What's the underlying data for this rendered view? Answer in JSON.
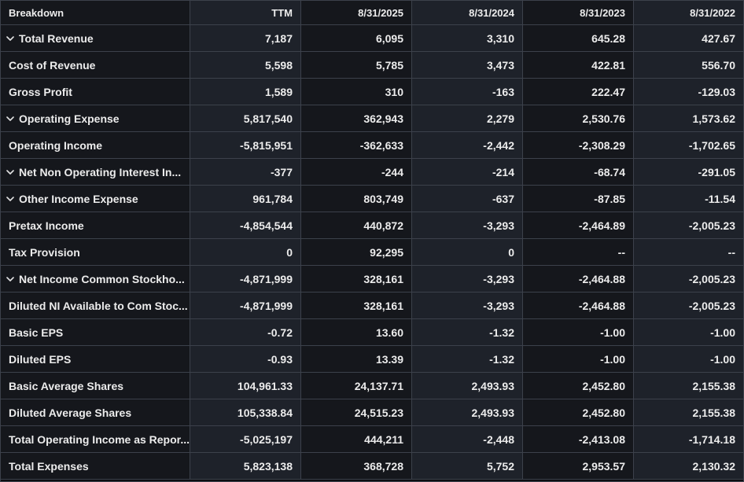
{
  "colors": {
    "column_dark": "#15171c",
    "column_light": "#1e222a",
    "border": "#3c414b",
    "text": "#ececec",
    "page_bg": "#0c0d10"
  },
  "table": {
    "columns": [
      {
        "id": "breakdown",
        "label": "Breakdown"
      },
      {
        "id": "ttm",
        "label": "TTM"
      },
      {
        "id": "date-8-31-2025",
        "label": "8/31/2025"
      },
      {
        "id": "date-8-31-2024",
        "label": "8/31/2024"
      },
      {
        "id": "date-8-31-2023",
        "label": "8/31/2023"
      },
      {
        "id": "date-8-31-2022",
        "label": "8/31/2022"
      }
    ],
    "rows": [
      {
        "label": "Total Revenue",
        "expandable": true,
        "values": [
          "7,187",
          "6,095",
          "3,310",
          "645.28",
          "427.67"
        ]
      },
      {
        "label": "Cost of Revenue",
        "expandable": false,
        "values": [
          "5,598",
          "5,785",
          "3,473",
          "422.81",
          "556.70"
        ]
      },
      {
        "label": "Gross Profit",
        "expandable": false,
        "values": [
          "1,589",
          "310",
          "-163",
          "222.47",
          "-129.03"
        ]
      },
      {
        "label": "Operating Expense",
        "expandable": true,
        "values": [
          "5,817,540",
          "362,943",
          "2,279",
          "2,530.76",
          "1,573.62"
        ]
      },
      {
        "label": "Operating Income",
        "expandable": false,
        "values": [
          "-5,815,951",
          "-362,633",
          "-2,442",
          "-2,308.29",
          "-1,702.65"
        ]
      },
      {
        "label": "Net Non Operating Interest In...",
        "expandable": true,
        "values": [
          "-377",
          "-244",
          "-214",
          "-68.74",
          "-291.05"
        ]
      },
      {
        "label": "Other Income Expense",
        "expandable": true,
        "values": [
          "961,784",
          "803,749",
          "-637",
          "-87.85",
          "-11.54"
        ]
      },
      {
        "label": "Pretax Income",
        "expandable": false,
        "values": [
          "-4,854,544",
          "440,872",
          "-3,293",
          "-2,464.89",
          "-2,005.23"
        ]
      },
      {
        "label": "Tax Provision",
        "expandable": false,
        "values": [
          "0",
          "92,295",
          "0",
          "--",
          "--"
        ]
      },
      {
        "label": "Net Income Common Stockho...",
        "expandable": true,
        "values": [
          "-4,871,999",
          "328,161",
          "-3,293",
          "-2,464.88",
          "-2,005.23"
        ]
      },
      {
        "label": "Diluted NI Available to Com Stoc...",
        "expandable": false,
        "values": [
          "-4,871,999",
          "328,161",
          "-3,293",
          "-2,464.88",
          "-2,005.23"
        ]
      },
      {
        "label": "Basic EPS",
        "expandable": false,
        "values": [
          "-0.72",
          "13.60",
          "-1.32",
          "-1.00",
          "-1.00"
        ]
      },
      {
        "label": "Diluted EPS",
        "expandable": false,
        "values": [
          "-0.93",
          "13.39",
          "-1.32",
          "-1.00",
          "-1.00"
        ]
      },
      {
        "label": "Basic Average Shares",
        "expandable": false,
        "values": [
          "104,961.33",
          "24,137.71",
          "2,493.93",
          "2,452.80",
          "2,155.38"
        ]
      },
      {
        "label": "Diluted Average Shares",
        "expandable": false,
        "values": [
          "105,338.84",
          "24,515.23",
          "2,493.93",
          "2,452.80",
          "2,155.38"
        ]
      },
      {
        "label": "Total Operating Income as Repor...",
        "expandable": false,
        "values": [
          "-5,025,197",
          "444,211",
          "-2,448",
          "-2,413.08",
          "-1,714.18"
        ]
      },
      {
        "label": "Total Expenses",
        "expandable": false,
        "values": [
          "5,823,138",
          "368,728",
          "5,752",
          "2,953.57",
          "2,130.32"
        ]
      }
    ]
  }
}
